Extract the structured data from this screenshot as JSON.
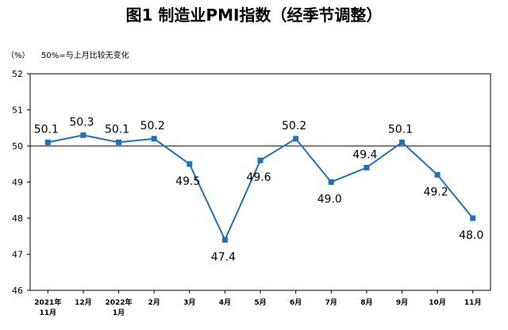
{
  "chart_data": {
    "type": "line",
    "title": "图1  制造业PMI指数（经季节调整）",
    "unit_label": "（%）",
    "note": "50%=与上月比较无变化",
    "categories": [
      [
        "2021年",
        "11月"
      ],
      [
        "12月"
      ],
      [
        "2022年",
        "1月"
      ],
      [
        "2月"
      ],
      [
        "3月"
      ],
      [
        "4月"
      ],
      [
        "5月"
      ],
      [
        "6月"
      ],
      [
        "7月"
      ],
      [
        "8月"
      ],
      [
        "9月"
      ],
      [
        "10月"
      ],
      [
        "11月"
      ]
    ],
    "values": [
      50.1,
      50.3,
      50.1,
      50.2,
      49.5,
      47.4,
      49.6,
      50.2,
      49.0,
      49.4,
      50.1,
      49.2,
      48.0
    ],
    "data_labels": [
      "50.1",
      "50.3",
      "50.1",
      "50.2",
      "49.5",
      "47.4",
      "49.6",
      "50.2",
      "49.0",
      "49.4",
      "50.1",
      "49.2",
      "48.0"
    ],
    "label_positions": [
      "above",
      "above",
      "above",
      "above",
      "below",
      "below",
      "below",
      "above",
      "below",
      "above",
      "above",
      "below",
      "below"
    ],
    "ylim": [
      46,
      52
    ],
    "yticks": [
      46,
      47,
      48,
      49,
      50,
      51,
      52
    ],
    "reference_line": 50,
    "grid": false,
    "legend": "none",
    "line_color": "#1f6fc0",
    "axis_color": "#000000"
  }
}
